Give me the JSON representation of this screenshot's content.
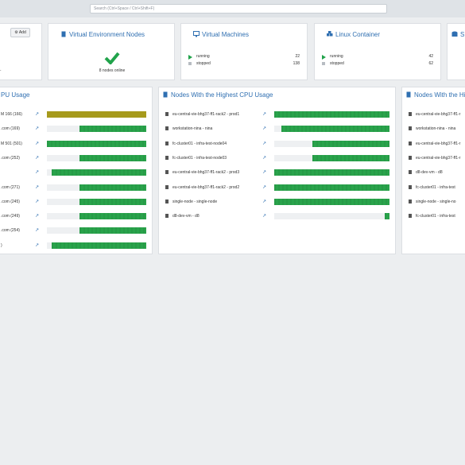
{
  "search": {
    "placeholder": "Search (Ctrl+Space / Ctrl+Shift+F)"
  },
  "left_top_card": {
    "add_label": "Add",
    "fragment": "."
  },
  "ve_nodes": {
    "title": "Virtual Environment Nodes",
    "status": "8 nodes online",
    "icon": "check-icon"
  },
  "vms": {
    "title": "Virtual Machines",
    "running_label": "running",
    "running": "22",
    "stopped_label": "stopped",
    "stopped": "138"
  },
  "lxc": {
    "title": "Linux Container",
    "running_label": "running",
    "running": "42",
    "stopped_label": "stopped",
    "stopped": "62"
  },
  "storage": {
    "title": "S"
  },
  "colors": {
    "accent": "#2f6fb1",
    "ok": "#21a34b",
    "warn": "#a69a1c"
  },
  "guest_cpu": {
    "title": "PU Usage",
    "rows": [
      {
        "label": "M 166 (166)",
        "usage": 1.0,
        "warn": true
      },
      {
        "label": ".com (169)",
        "usage": 0.67,
        "warn": false
      },
      {
        "label": "M 501 (501)",
        "usage": 1.0,
        "warn": false
      },
      {
        "label": ".com (252)",
        "usage": 0.67,
        "warn": false
      },
      {
        "label": "",
        "usage": 0.95,
        "warn": false
      },
      {
        "label": ".com (271)",
        "usage": 0.67,
        "warn": false
      },
      {
        "label": ".com (245)",
        "usage": 0.67,
        "warn": false
      },
      {
        "label": ".com (249)",
        "usage": 0.67,
        "warn": false
      },
      {
        "label": ".com (254)",
        "usage": 0.67,
        "warn": false
      },
      {
        "label": ")",
        "usage": 0.95,
        "warn": false
      }
    ]
  },
  "nodes_cpu": {
    "title": "Nodes With the Highest CPU Usage",
    "rows": [
      {
        "label": "eu-central-vie-bhg37-ff1-rack2 - prod1",
        "usage": 1.0
      },
      {
        "label": "workstation-nina - nina",
        "usage": 0.94
      },
      {
        "label": "fc-cluster01 - infra-test-node04",
        "usage": 0.67
      },
      {
        "label": "fc-cluster01 - infra-test-node03",
        "usage": 0.67
      },
      {
        "label": "eu-central-vie-bhg37-ff1-rack2 - prod3",
        "usage": 1.0
      },
      {
        "label": "eu-central-vie-bhg37-ff1-rack2 - prod2",
        "usage": 1.0
      },
      {
        "label": "single-node - single-node",
        "usage": 1.0
      },
      {
        "label": "d8-dev-vm - d8",
        "usage": 0.04
      }
    ]
  },
  "nodes_mem": {
    "title": "Nodes With the Hi",
    "rows": [
      {
        "label": "eu-central-vie-bhg37-ff1-r"
      },
      {
        "label": "workstation-nina - nina"
      },
      {
        "label": "eu-central-vie-bhg37-ff1-r"
      },
      {
        "label": "eu-central-vie-bhg37-ff1-r"
      },
      {
        "label": "d8-dev-vm - d8"
      },
      {
        "label": "fc-cluster01 - infra-test"
      },
      {
        "label": "single-node - single-no"
      },
      {
        "label": "fc-cluster01 - infra-test"
      }
    ]
  }
}
